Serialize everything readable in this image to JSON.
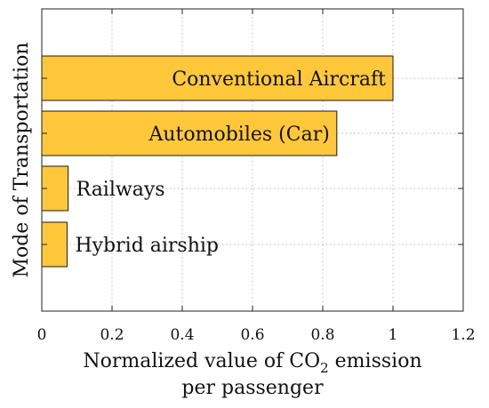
{
  "chart_data": {
    "type": "bar",
    "orientation": "horizontal",
    "categories": [
      "Conventional Aircraft",
      "Automobiles (Car)",
      "Railways",
      "Hybrid airship"
    ],
    "values": [
      1.0,
      0.84,
      0.075,
      0.072
    ],
    "label_placement": [
      "inside",
      "inside",
      "outside",
      "outside"
    ],
    "xlabel_line1_prefix": "Normalized value of CO",
    "xlabel_subscript": "2",
    "xlabel_line1_suffix": " emission",
    "xlabel_line2": "per passenger",
    "ylabel": "Mode of Transportation",
    "xlim": [
      0,
      1.2
    ],
    "xticks": [
      0,
      0.2,
      0.4,
      0.6,
      0.8,
      1,
      1.2
    ],
    "xtick_labels": [
      "0",
      "0.2",
      "0.4",
      "0.6",
      "0.8",
      "1",
      "1.2"
    ],
    "grid": true,
    "bar_color": "#FFC83A",
    "bar_edge_color": "#1a1a1a"
  }
}
